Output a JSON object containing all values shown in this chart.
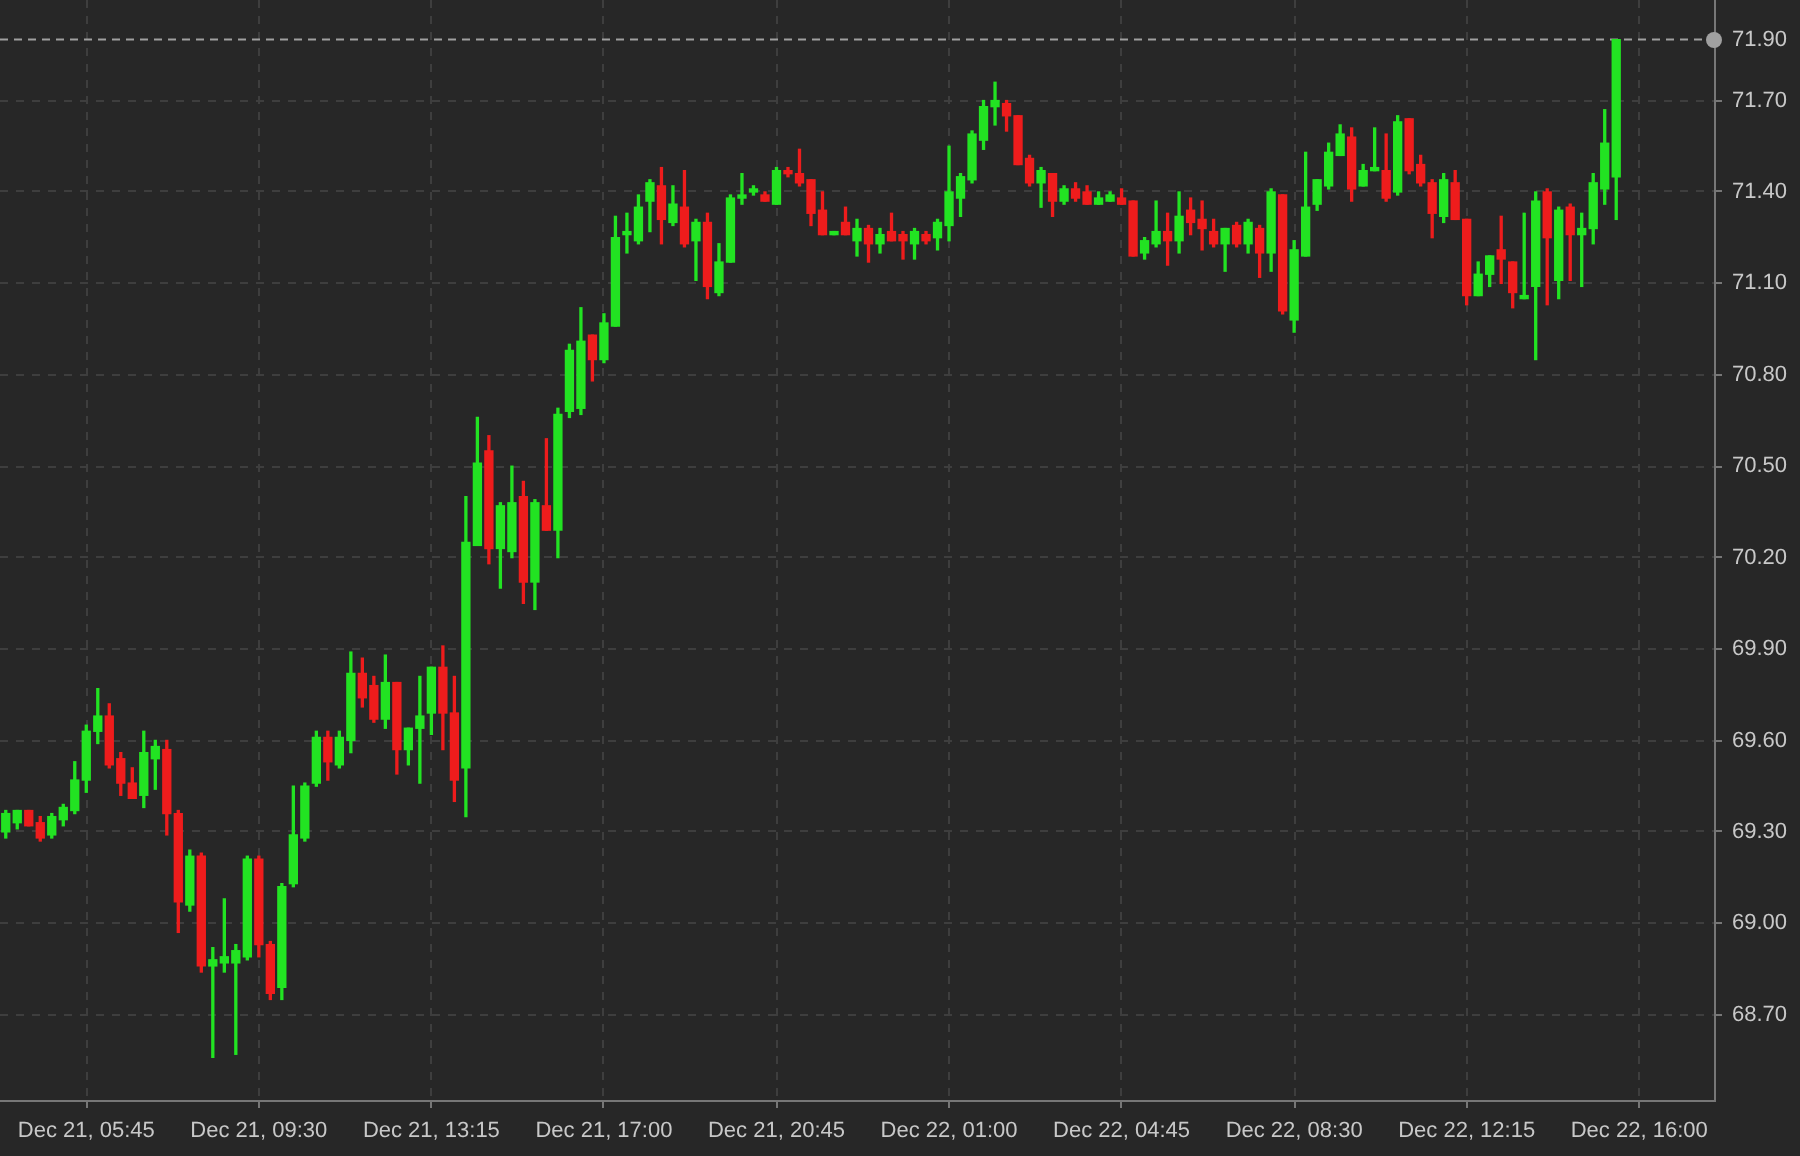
{
  "chart_data": {
    "type": "candlestick",
    "categories": [
      null,
      null,
      null,
      null,
      null,
      null,
      null,
      "Dec 21, 05:45",
      null,
      null,
      null,
      null,
      null,
      null,
      null,
      null,
      null,
      null,
      null,
      null,
      null,
      null,
      "Dec 21, 09:30",
      null,
      null,
      null,
      null,
      null,
      null,
      null,
      null,
      null,
      null,
      null,
      null,
      null,
      null,
      "Dec 21, 13:15",
      null,
      null,
      null,
      null,
      null,
      null,
      null,
      null,
      null,
      null,
      null,
      null,
      null,
      null,
      "Dec 21, 17:00",
      null,
      null,
      null,
      null,
      null,
      null,
      null,
      null,
      null,
      null,
      null,
      null,
      null,
      null,
      "Dec 21, 20:45",
      null,
      null,
      null,
      null,
      null,
      null,
      null,
      null,
      null,
      null,
      null,
      null,
      null,
      null,
      "Dec 22, 01:00",
      null,
      null,
      null,
      null,
      null,
      null,
      null,
      null,
      null,
      null,
      null,
      null,
      null,
      null,
      "Dec 22, 04:45",
      null,
      null,
      null,
      null,
      null,
      null,
      null,
      null,
      null,
      null,
      null,
      null,
      null,
      null,
      "Dec 22, 08:30",
      null,
      null,
      null,
      null,
      null,
      null,
      null,
      null,
      null,
      null,
      null,
      null,
      null,
      null,
      "Dec 22, 12:15",
      null,
      null,
      null,
      null,
      null,
      null,
      null,
      null,
      null,
      null,
      null,
      null,
      null,
      null,
      "Dec 22, 16:00",
      null,
      null,
      null,
      null,
      null,
      null
    ],
    "ohlc": [
      [
        69.3,
        69.37,
        69.28,
        69.36
      ],
      [
        69.33,
        69.37,
        69.31,
        69.37
      ],
      [
        69.37,
        69.37,
        69.32,
        69.32
      ],
      [
        69.33,
        69.35,
        69.27,
        69.28
      ],
      [
        69.29,
        69.36,
        69.28,
        69.35
      ],
      [
        69.34,
        69.39,
        69.32,
        69.38
      ],
      [
        69.37,
        69.53,
        69.36,
        69.47
      ],
      [
        69.47,
        69.65,
        69.43,
        69.63
      ],
      [
        69.63,
        69.77,
        69.59,
        69.68
      ],
      [
        69.68,
        69.72,
        69.51,
        69.52
      ],
      [
        69.54,
        69.56,
        69.42,
        69.46
      ],
      [
        69.46,
        69.51,
        69.41,
        69.41
      ],
      [
        69.42,
        69.63,
        69.38,
        69.56
      ],
      [
        69.54,
        69.6,
        69.44,
        69.58
      ],
      [
        69.57,
        69.6,
        69.29,
        69.36
      ],
      [
        69.36,
        69.37,
        68.97,
        69.07
      ],
      [
        69.06,
        69.24,
        69.04,
        69.22
      ],
      [
        69.22,
        69.23,
        68.84,
        68.86
      ],
      [
        68.86,
        68.92,
        68.56,
        68.88
      ],
      [
        68.87,
        69.08,
        68.84,
        68.89
      ],
      [
        68.87,
        68.93,
        68.57,
        68.91
      ],
      [
        68.89,
        69.22,
        68.88,
        69.21
      ],
      [
        69.21,
        69.22,
        68.89,
        68.93
      ],
      [
        68.93,
        68.94,
        68.75,
        68.77
      ],
      [
        68.79,
        69.13,
        68.75,
        69.12
      ],
      [
        69.13,
        69.45,
        69.12,
        69.29
      ],
      [
        69.28,
        69.46,
        69.27,
        69.45
      ],
      [
        69.46,
        69.63,
        69.45,
        69.61
      ],
      [
        69.61,
        69.63,
        69.47,
        69.53
      ],
      [
        69.52,
        69.63,
        69.51,
        69.61
      ],
      [
        69.6,
        69.89,
        69.56,
        69.82
      ],
      [
        69.82,
        69.87,
        69.71,
        69.74
      ],
      [
        69.78,
        69.81,
        69.66,
        69.67
      ],
      [
        69.67,
        69.88,
        69.64,
        69.79
      ],
      [
        69.79,
        69.79,
        69.49,
        69.57
      ],
      [
        69.57,
        69.64,
        69.52,
        69.64
      ],
      [
        69.64,
        69.81,
        69.46,
        69.68
      ],
      [
        69.69,
        69.84,
        69.62,
        69.84
      ],
      [
        69.84,
        69.91,
        69.57,
        69.69
      ],
      [
        69.69,
        69.81,
        69.4,
        69.47
      ],
      [
        69.51,
        70.4,
        69.35,
        70.25
      ],
      [
        70.24,
        70.66,
        70.24,
        70.51
      ],
      [
        70.55,
        70.6,
        70.18,
        70.23
      ],
      [
        70.23,
        70.38,
        70.1,
        70.37
      ],
      [
        70.22,
        70.5,
        70.2,
        70.38
      ],
      [
        70.4,
        70.45,
        70.05,
        70.12
      ],
      [
        70.12,
        70.39,
        70.03,
        70.38
      ],
      [
        70.37,
        70.59,
        70.29,
        70.29
      ],
      [
        70.29,
        70.69,
        70.2,
        70.67
      ],
      [
        70.68,
        70.9,
        70.66,
        70.88
      ],
      [
        70.69,
        71.02,
        70.67,
        70.91
      ],
      [
        70.93,
        70.93,
        70.78,
        70.85
      ],
      [
        70.85,
        71.0,
        70.84,
        70.97
      ],
      [
        70.96,
        71.32,
        70.96,
        71.25
      ],
      [
        71.26,
        71.33,
        71.2,
        71.27
      ],
      [
        71.24,
        71.39,
        71.23,
        71.35
      ],
      [
        71.37,
        71.44,
        71.27,
        71.43
      ],
      [
        71.42,
        71.48,
        71.23,
        71.31
      ],
      [
        71.3,
        71.42,
        71.29,
        71.36
      ],
      [
        71.35,
        71.47,
        71.22,
        71.23
      ],
      [
        71.24,
        71.31,
        71.11,
        71.3
      ],
      [
        71.3,
        71.33,
        71.05,
        71.09
      ],
      [
        71.07,
        71.23,
        71.06,
        71.17
      ],
      [
        71.17,
        71.39,
        71.17,
        71.38
      ],
      [
        71.38,
        71.46,
        71.36,
        71.39
      ],
      [
        71.4,
        71.42,
        71.39,
        71.41
      ],
      [
        71.39,
        71.4,
        71.37,
        71.37
      ],
      [
        71.36,
        71.48,
        71.36,
        71.47
      ],
      [
        71.47,
        71.48,
        71.45,
        71.46
      ],
      [
        71.46,
        71.54,
        71.42,
        71.43
      ],
      [
        71.44,
        71.44,
        71.29,
        71.33
      ],
      [
        71.34,
        71.4,
        71.26,
        71.26
      ],
      [
        71.26,
        71.27,
        71.26,
        71.27
      ],
      [
        71.3,
        71.35,
        71.26,
        71.26
      ],
      [
        71.24,
        71.31,
        71.19,
        71.28
      ],
      [
        71.28,
        71.29,
        71.17,
        71.23
      ],
      [
        71.23,
        71.28,
        71.2,
        71.26
      ],
      [
        71.27,
        71.33,
        71.24,
        71.24
      ],
      [
        71.26,
        71.27,
        71.18,
        71.24
      ],
      [
        71.23,
        71.28,
        71.18,
        71.27
      ],
      [
        71.26,
        71.27,
        71.23,
        71.24
      ],
      [
        71.25,
        71.31,
        71.21,
        71.3
      ],
      [
        71.29,
        71.55,
        71.24,
        71.4
      ],
      [
        71.38,
        71.46,
        71.32,
        71.45
      ],
      [
        71.44,
        71.6,
        71.43,
        71.59
      ],
      [
        71.57,
        71.7,
        71.54,
        71.68
      ],
      [
        71.68,
        71.76,
        71.62,
        71.7
      ],
      [
        71.69,
        71.7,
        71.6,
        71.65
      ],
      [
        71.65,
        71.65,
        71.49,
        71.49
      ],
      [
        71.51,
        71.52,
        71.42,
        71.43
      ],
      [
        71.43,
        71.48,
        71.35,
        71.47
      ],
      [
        71.46,
        71.46,
        71.32,
        71.37
      ],
      [
        71.37,
        71.42,
        71.36,
        71.41
      ],
      [
        71.41,
        71.43,
        71.37,
        71.38
      ],
      [
        71.4,
        71.42,
        71.36,
        71.36
      ],
      [
        71.36,
        71.4,
        71.36,
        71.38
      ],
      [
        71.37,
        71.4,
        71.37,
        71.39
      ],
      [
        71.38,
        71.41,
        71.36,
        71.36
      ],
      [
        71.37,
        71.37,
        71.19,
        71.19
      ],
      [
        71.2,
        71.25,
        71.18,
        71.24
      ],
      [
        71.23,
        71.37,
        71.22,
        71.27
      ],
      [
        71.27,
        71.33,
        71.16,
        71.24
      ],
      [
        71.24,
        71.4,
        71.2,
        71.32
      ],
      [
        71.34,
        71.38,
        71.26,
        71.3
      ],
      [
        71.31,
        71.37,
        71.21,
        71.28
      ],
      [
        71.27,
        71.31,
        71.22,
        71.23
      ],
      [
        71.23,
        71.28,
        71.14,
        71.28
      ],
      [
        71.29,
        71.3,
        71.22,
        71.23
      ],
      [
        71.23,
        71.31,
        71.2,
        71.3
      ],
      [
        71.28,
        71.29,
        71.12,
        71.2
      ],
      [
        71.2,
        71.41,
        71.14,
        71.4
      ],
      [
        71.39,
        71.39,
        71.0,
        71.01
      ],
      [
        70.98,
        71.24,
        70.94,
        71.21
      ],
      [
        71.19,
        71.53,
        71.19,
        71.35
      ],
      [
        71.36,
        71.44,
        71.34,
        71.44
      ],
      [
        71.42,
        71.56,
        71.41,
        71.53
      ],
      [
        71.52,
        71.62,
        71.52,
        71.59
      ],
      [
        71.58,
        71.61,
        71.37,
        71.41
      ],
      [
        71.42,
        71.49,
        71.42,
        71.47
      ],
      [
        71.47,
        71.61,
        71.47,
        71.48
      ],
      [
        71.47,
        71.59,
        71.37,
        71.38
      ],
      [
        71.4,
        71.65,
        71.39,
        71.63
      ],
      [
        71.64,
        71.64,
        71.46,
        71.47
      ],
      [
        71.49,
        71.52,
        71.42,
        71.43
      ],
      [
        71.43,
        71.44,
        71.25,
        71.33
      ],
      [
        71.32,
        71.46,
        71.3,
        71.44
      ],
      [
        71.43,
        71.47,
        71.31,
        71.31
      ],
      [
        71.31,
        71.31,
        71.03,
        71.06
      ],
      [
        71.06,
        71.17,
        71.06,
        71.13
      ],
      [
        71.13,
        71.19,
        71.09,
        71.19
      ],
      [
        71.21,
        71.32,
        71.1,
        71.18
      ],
      [
        71.17,
        71.17,
        71.02,
        71.07
      ],
      [
        71.05,
        71.33,
        71.05,
        71.06
      ],
      [
        71.09,
        71.4,
        70.85,
        71.37
      ],
      [
        71.4,
        71.41,
        71.03,
        71.25
      ],
      [
        71.11,
        71.35,
        71.05,
        71.34
      ],
      [
        71.35,
        71.36,
        71.11,
        71.26
      ],
      [
        71.26,
        71.33,
        71.09,
        71.28
      ],
      [
        71.28,
        71.46,
        71.23,
        71.43
      ],
      [
        71.41,
        71.67,
        71.36,
        71.56
      ],
      [
        71.45,
        71.9,
        71.31,
        71.9
      ],
      null,
      null,
      null,
      null,
      null,
      null,
      null,
      null
    ],
    "colors": [
      "#22e322",
      "#22e322",
      "#ee1c1c",
      "#ee1c1c",
      "#22e322",
      "#22e322",
      "#22e322",
      "#22e322",
      "#22e322",
      "#ee1c1c",
      "#ee1c1c",
      "#ee1c1c",
      "#22e322",
      "#22e322",
      "#ee1c1c",
      "#ee1c1c",
      "#22e322",
      "#ee1c1c",
      "#22e322",
      "#22e322",
      "#22e322",
      "#22e322",
      "#ee1c1c",
      "#ee1c1c",
      "#22e322",
      "#22e322",
      "#22e322",
      "#22e322",
      "#ee1c1c",
      "#22e322",
      "#22e322",
      "#ee1c1c",
      "#ee1c1c",
      "#22e322",
      "#ee1c1c",
      "#22e322",
      "#22e322",
      "#22e322",
      "#ee1c1c",
      "#ee1c1c",
      "#22e322",
      "#22e322",
      "#ee1c1c",
      "#22e322",
      "#22e322",
      "#ee1c1c",
      "#22e322",
      "#ee1c1c",
      "#22e322",
      "#22e322",
      "#22e322",
      "#ee1c1c",
      "#22e322",
      "#22e322",
      "#22e322",
      "#22e322",
      "#22e322",
      "#ee1c1c",
      "#22e322",
      "#ee1c1c",
      "#22e322",
      "#ee1c1c",
      "#22e322",
      "#22e322",
      "#22e322",
      "#22e322",
      "#ee1c1c",
      "#22e322",
      "#ee1c1c",
      "#ee1c1c",
      "#ee1c1c",
      "#ee1c1c",
      "#22e322",
      "#ee1c1c",
      "#22e322",
      "#ee1c1c",
      "#22e322",
      "#ee1c1c",
      "#ee1c1c",
      "#22e322",
      "#ee1c1c",
      "#22e322",
      "#22e322",
      "#22e322",
      "#22e322",
      "#22e322",
      "#22e322",
      "#ee1c1c",
      "#ee1c1c",
      "#ee1c1c",
      "#22e322",
      "#ee1c1c",
      "#22e322",
      "#ee1c1c",
      "#ee1c1c",
      "#22e322",
      "#22e322",
      "#ee1c1c",
      "#ee1c1c",
      "#22e322",
      "#22e322",
      "#ee1c1c",
      "#22e322",
      "#ee1c1c",
      "#ee1c1c",
      "#ee1c1c",
      "#22e322",
      "#ee1c1c",
      "#22e322",
      "#ee1c1c",
      "#22e322",
      "#ee1c1c",
      "#22e322",
      "#22e322",
      "#22e322",
      "#22e322",
      "#22e322",
      "#ee1c1c",
      "#22e322",
      "#22e322",
      "#ee1c1c",
      "#22e322",
      "#ee1c1c",
      "#ee1c1c",
      "#ee1c1c",
      "#22e322",
      "#ee1c1c",
      "#ee1c1c",
      "#22e322",
      "#22e322",
      "#ee1c1c",
      "#ee1c1c",
      "#22e322",
      "#22e322",
      "#ee1c1c",
      "#22e322",
      "#ee1c1c",
      "#22e322",
      "#22e322",
      "#22e322",
      "#22e322",
      null,
      null,
      null,
      null,
      null,
      null,
      null,
      null
    ],
    "ylim": [
      68.42,
      72.03
    ],
    "yticks": [
      {
        "value": 68.7,
        "label": "68.70"
      },
      {
        "value": 69,
        "label": "69.00"
      },
      {
        "value": 69.3,
        "label": "69.30"
      },
      {
        "value": 69.6,
        "label": "69.60"
      },
      {
        "value": 69.9,
        "label": "69.90"
      },
      {
        "value": 70.2,
        "label": "70.20"
      },
      {
        "value": 70.5,
        "label": "70.50"
      },
      {
        "value": 70.8,
        "label": "70.80"
      },
      {
        "value": 71.1,
        "label": "71.10"
      },
      {
        "value": 71.4,
        "label": "71.40"
      },
      {
        "value": 71.7,
        "label": "71.70"
      }
    ],
    "grid": true,
    "ref_lines": [
      {
        "axis": "y",
        "value": 71.9,
        "label": "71.90",
        "color": "#a0a0a0",
        "line_style": "dashed"
      }
    ]
  }
}
